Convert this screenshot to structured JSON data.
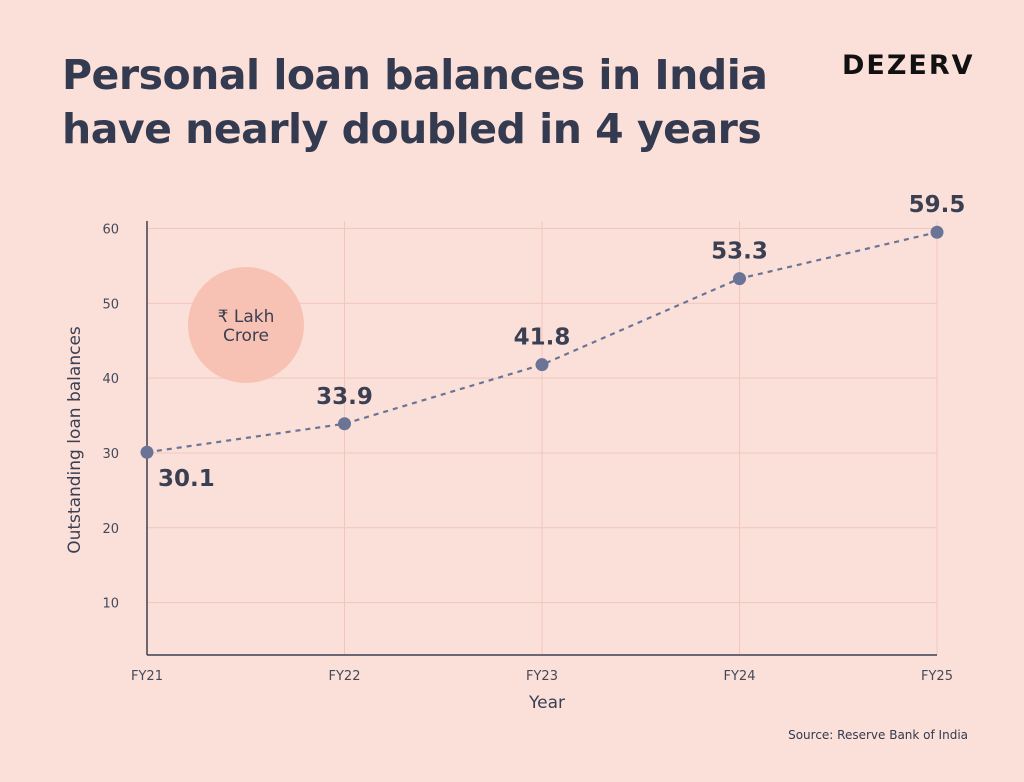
{
  "header": {
    "title": "Personal loan balances in India have nearly doubled in 4 years",
    "brand": "DEZERV"
  },
  "footer": {
    "source": "Source: Reserve Bank of India"
  },
  "unit_badge": {
    "line1": "₹ Lakh",
    "line2": "Crore",
    "color": "#f7c2b3"
  },
  "colors": {
    "background": "#fbe0da",
    "line": "#6a7496",
    "point": "#6a7496",
    "grid": "#f0c6bd"
  },
  "chart_data": {
    "type": "line",
    "title": "Personal loan balances in India have nearly doubled in 4 years",
    "xlabel": "Year",
    "ylabel": "Outstanding loan balances",
    "categories": [
      "FY21",
      "FY22",
      "FY23",
      "FY24",
      "FY25"
    ],
    "series": [
      {
        "values": [
          30.1,
          33.9,
          41.8,
          53.3,
          59.5
        ]
      }
    ],
    "yticks": [
      10,
      20,
      30,
      40,
      50,
      60
    ],
    "ylim": [
      3,
      61
    ],
    "grid": true,
    "line_style": "dashed",
    "data_labels": true
  }
}
